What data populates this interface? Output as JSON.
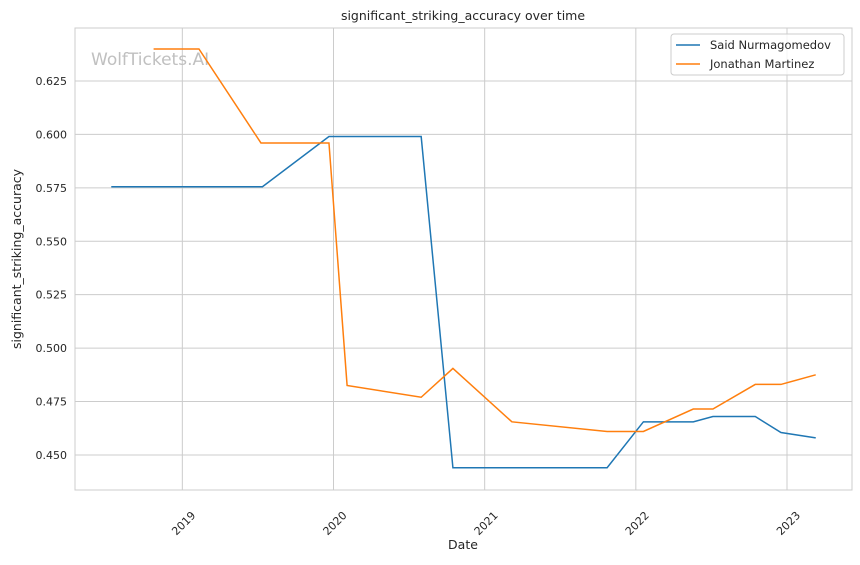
{
  "chart_data": {
    "type": "line",
    "title": "significant_striking_accuracy over time",
    "xlabel": "Date",
    "ylabel": "significant_striking_accuracy",
    "xlim": [
      2018.29,
      2023.43
    ],
    "ylim": [
      0.4336,
      0.6498
    ],
    "xticks": [
      2019,
      2020,
      2021,
      2022,
      2023
    ],
    "xtick_labels": [
      "2019",
      "2020",
      "2021",
      "2022",
      "2023"
    ],
    "yticks": [
      0.45,
      0.475,
      0.5,
      0.525,
      0.55,
      0.575,
      0.6,
      0.625
    ],
    "ytick_labels": [
      "0.450",
      "0.475",
      "0.500",
      "0.525",
      "0.550",
      "0.575",
      "0.600",
      "0.625"
    ],
    "grid": true,
    "legend_position": "top-right",
    "watermark": "WolfTickets.AI",
    "series": [
      {
        "name": "Said Nurmagomedov",
        "color": "#1f77b4",
        "x": [
          2018.53,
          2019.53,
          2019.97,
          2020.58,
          2020.79,
          2021.81,
          2022.05,
          2022.38,
          2022.51,
          2022.79,
          2022.96,
          2023.19
        ],
        "values": [
          0.5755,
          0.5755,
          0.599,
          0.599,
          0.444,
          0.444,
          0.4655,
          0.4655,
          0.468,
          0.468,
          0.4605,
          0.458
        ]
      },
      {
        "name": "Jonathan Martinez",
        "color": "#ff7f0e",
        "x": [
          2018.81,
          2019.11,
          2019.52,
          2019.97,
          2020.09,
          2020.58,
          2020.79,
          2021.18,
          2021.81,
          2022.05,
          2022.38,
          2022.51,
          2022.79,
          2022.96,
          2023.19
        ],
        "values": [
          0.64,
          0.64,
          0.596,
          0.596,
          0.4825,
          0.477,
          0.4905,
          0.4655,
          0.461,
          0.461,
          0.4715,
          0.4715,
          0.483,
          0.483,
          0.4875
        ]
      }
    ]
  }
}
